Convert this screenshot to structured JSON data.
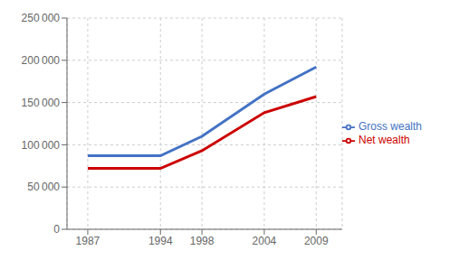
{
  "chart_data": {
    "type": "line",
    "x": [
      1987,
      1994,
      1998,
      2004,
      2009
    ],
    "series": [
      {
        "name": "Gross wealth",
        "color": "#4472C4",
        "values": [
          87000,
          87000,
          110000,
          160000,
          192000
        ]
      },
      {
        "name": "Net wealth",
        "color": "#CC0000",
        "values": [
          72000,
          72000,
          93000,
          138000,
          157000
        ]
      }
    ],
    "xlim": [
      1985,
      2011.5
    ],
    "xticks": [
      1987,
      1994,
      1998,
      2004,
      2009
    ],
    "ylim": [
      0,
      250000
    ],
    "yticks": [
      0,
      {
        "value": 50000,
        "label": "50 000"
      },
      {
        "value": 100000,
        "label": "100 000"
      },
      {
        "value": 150000,
        "label": "150 000"
      },
      {
        "value": 200000,
        "label": "200 000"
      },
      {
        "value": 250000,
        "label": "250 000"
      }
    ],
    "grid": true,
    "legend": "right"
  }
}
